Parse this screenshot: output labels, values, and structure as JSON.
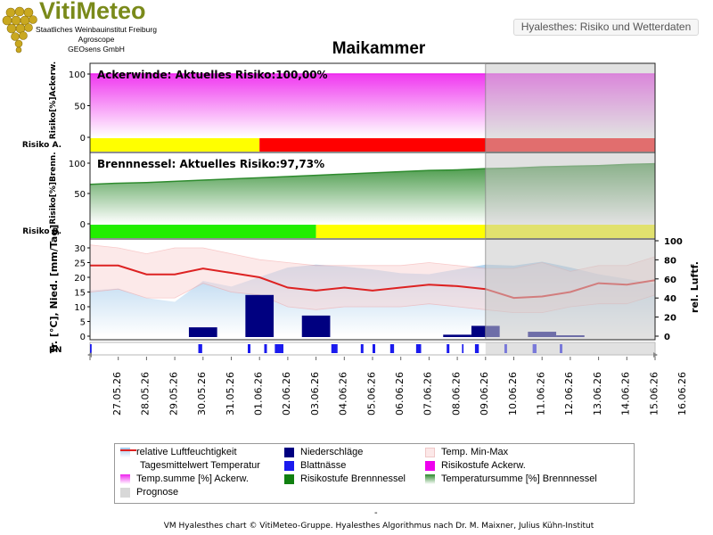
{
  "logo": {
    "title": "VitiMeteo",
    "line1": "Staatliches Weinbauinstitut Freiburg",
    "line2": "Agroscope",
    "line3": "GEOsens GmbH"
  },
  "header_box": "Hyalesthes: Risiko und Wetterdaten",
  "station": "Maikammer",
  "footer": {
    "dash": "-",
    "text": "VM Hyalesthes chart © VitiMeteo-Gruppe. Hyalesthes Algorithmus nach Dr. M. Maixner, Julius Kühn-Institut"
  },
  "colors": {
    "ackerwinde": "#ee22ee",
    "brennnessel": "#2e8b2e",
    "risk_yellow": "#ffff00",
    "risk_red": "#ff0000",
    "risk_green": "#22ee00",
    "prognose": "#d8d8d8",
    "temp_line": "#dd2222",
    "precip": "#000080",
    "leaf_wetness": "#1a1aee",
    "humidity": "#bcd8ee"
  },
  "legend": {
    "items": [
      {
        "label": "relative Luftfeuchtigkeit",
        "swatch": "humidity"
      },
      {
        "label": "Niederschläge",
        "swatch": "precip"
      },
      {
        "label": "Temp. Min-Max",
        "swatch": "minmax"
      },
      {
        "label": "Tagesmittelwert Temperatur",
        "swatch": "templine"
      },
      {
        "label": "Blattnässe",
        "swatch": "leaf"
      },
      {
        "label": "Risikostufe Ackerw.",
        "swatch": "ackerstufe"
      },
      {
        "label": "Temp.summe [%] Ackerw.",
        "swatch": "ackersum"
      },
      {
        "label": "Risikostufe Brennnessel",
        "swatch": "brennstufe"
      },
      {
        "label": "Temperatursumme [%] Brennnessel",
        "swatch": "brennsum"
      },
      {
        "label": "Prognose",
        "swatch": "prognose"
      }
    ]
  },
  "chart_data": {
    "type": "line",
    "x_dates": [
      "27.05.26",
      "28.05.26",
      "29.05.26",
      "30.05.26",
      "31.05.26",
      "01.06.26",
      "02.06.26",
      "03.06.26",
      "04.06.26",
      "05.06.26",
      "06.06.26",
      "07.06.26",
      "08.06.26",
      "09.06.26",
      "10.06.26",
      "11.06.26",
      "12.06.26",
      "13.06.26",
      "14.06.26",
      "15.06.26",
      "16.06.26"
    ],
    "prognose_from": "10.06.26",
    "panel1": {
      "title": "Ackerwinde: Aktuelles Risiko:100,00%",
      "ylabel": "Risiko[%]Ackerw.",
      "yticks": [
        0,
        50,
        100
      ],
      "ylim": [
        0,
        100
      ],
      "risk_label": "Risiko A.",
      "temperature_sum_percent": [
        100,
        100,
        100,
        100,
        100,
        100,
        100,
        100,
        100,
        100,
        100,
        100,
        100,
        100,
        100,
        100,
        100,
        100,
        100,
        100,
        100
      ],
      "risk_levels": [
        {
          "from": "27.05.26",
          "to": "02.06.26",
          "level": "yellow"
        },
        {
          "from": "02.06.26",
          "to": "16.06.26",
          "level": "red"
        }
      ]
    },
    "panel2": {
      "title": "Brennnessel: Aktuelles Risiko:97,73%",
      "ylabel": "Risiko[%]Brenn.",
      "yticks": [
        0,
        50,
        100
      ],
      "ylim": [
        0,
        100
      ],
      "risk_label": "Risiko B.",
      "temperature_sum_percent": [
        65,
        67,
        68,
        70,
        72,
        74,
        76,
        78,
        80,
        82,
        84,
        86,
        88,
        89,
        91,
        92,
        94,
        95,
        96,
        98,
        99
      ],
      "risk_levels": [
        {
          "from": "27.05.26",
          "to": "04.06.26",
          "level": "green"
        },
        {
          "from": "04.06.26",
          "to": "16.06.26",
          "level": "yellow"
        }
      ]
    },
    "panel3": {
      "ylabel_left": "Tr. [°C], Nied. [mm/Tag]",
      "ylabel_right": "rel. Luftf.",
      "yticks_left": [
        0,
        5,
        10,
        15,
        20,
        25,
        30
      ],
      "yticks_right": [
        0,
        20,
        40,
        60,
        80,
        100
      ],
      "ylim_left": [
        0,
        32
      ],
      "ylim_right": [
        0,
        100
      ],
      "leaf_wetness_label": "BN",
      "temp_mean": [
        24,
        24,
        21,
        21,
        23,
        21.5,
        20,
        16.5,
        15.5,
        16.5,
        15.5,
        16.5,
        17.5,
        17,
        16,
        13,
        13.5,
        15,
        18,
        17.5,
        19
      ],
      "temp_max": [
        31,
        30,
        28,
        30,
        30,
        28,
        26,
        25,
        24,
        24,
        24,
        24,
        25,
        24,
        23,
        23,
        25,
        22,
        24,
        24,
        27
      ],
      "temp_min": [
        15,
        16,
        13,
        13,
        18,
        15,
        14,
        10,
        9,
        10,
        10,
        10,
        11,
        10,
        9,
        8,
        8,
        10,
        11,
        11,
        14
      ],
      "rel_humidity": [
        48,
        50,
        40,
        36,
        58,
        52,
        62,
        72,
        75,
        73,
        70,
        66,
        65,
        70,
        75,
        74,
        78,
        72,
        65,
        60,
        55
      ],
      "precipitation": [
        0,
        0,
        0,
        0,
        3,
        0,
        14,
        0,
        7,
        0,
        0,
        0,
        0,
        0.5,
        3.5,
        0,
        1.5,
        0.3,
        0,
        0,
        0
      ],
      "leaf_wetness_hours": [
        {
          "date": "27.05.26",
          "hours": [
            1,
            2
          ]
        },
        {
          "date": "31.05.26",
          "hours": [
            8,
            9,
            10
          ]
        },
        {
          "date": "02.06.26",
          "hours": [
            2,
            3,
            16,
            17
          ]
        },
        {
          "date": "03.06.26",
          "hours": [
            1,
            2,
            3,
            4,
            5,
            6,
            7
          ]
        },
        {
          "date": "05.06.26",
          "hours": [
            1,
            2,
            3,
            4,
            5
          ]
        },
        {
          "date": "06.06.26",
          "hours": [
            2,
            3,
            12,
            13
          ]
        },
        {
          "date": "07.06.26",
          "hours": [
            3,
            4,
            5
          ]
        },
        {
          "date": "08.06.26",
          "hours": [
            1,
            2,
            3,
            4
          ]
        },
        {
          "date": "09.06.26",
          "hours": [
            3,
            4,
            16
          ]
        },
        {
          "date": "10.06.26",
          "hours": [
            3,
            4,
            5
          ]
        },
        {
          "date": "11.06.26",
          "hours": [
            4,
            5
          ]
        },
        {
          "date": "12.06.26",
          "hours": [
            4,
            5,
            6
          ]
        },
        {
          "date": "13.06.26",
          "hours": [
            3,
            4
          ]
        }
      ]
    }
  }
}
